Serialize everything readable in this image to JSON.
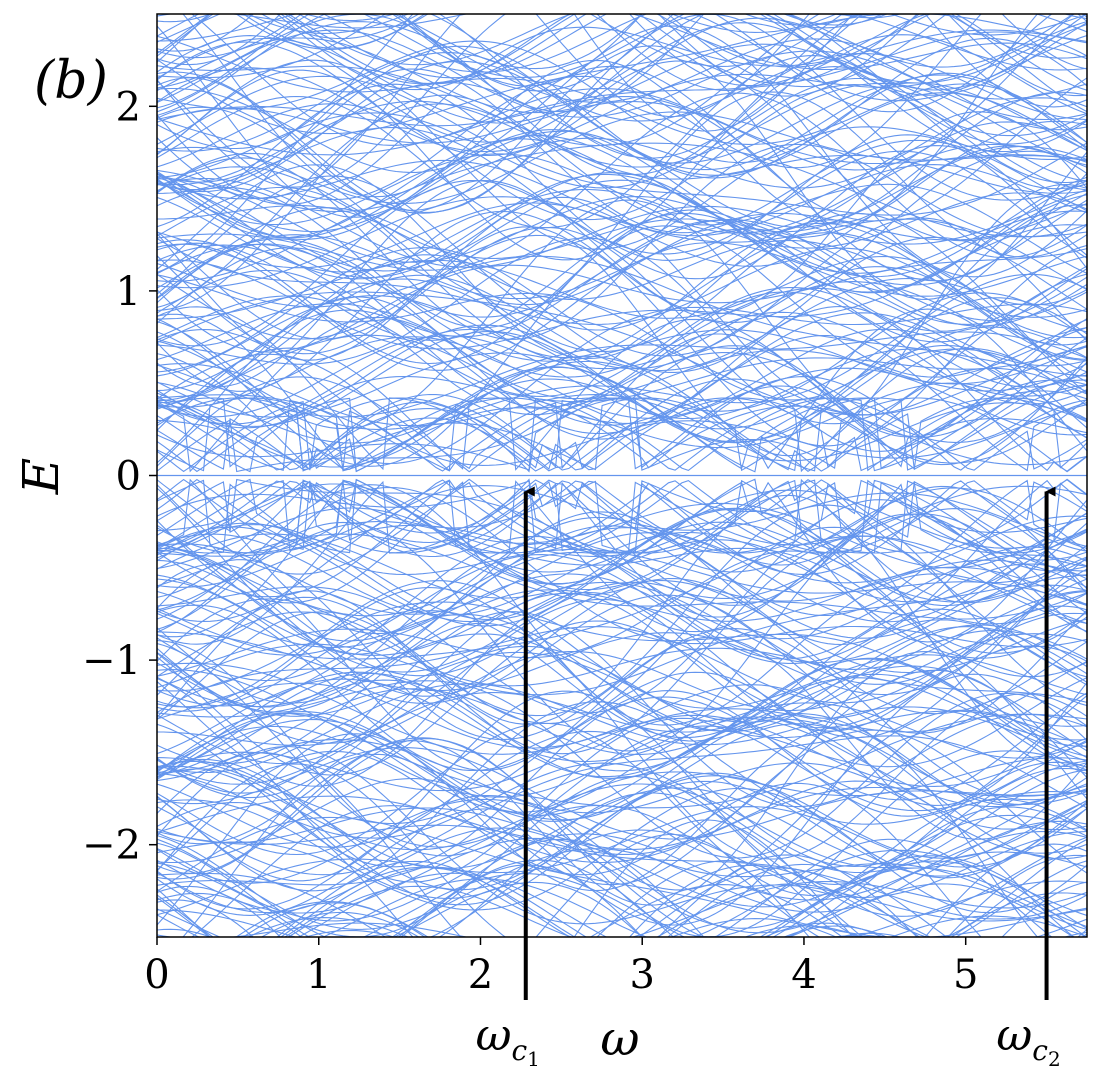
{
  "panel_label": "(b)",
  "chart_data": {
    "type": "line",
    "title": "",
    "xlabel": "ω",
    "ylabel": "E",
    "xlim": [
      0,
      5.75
    ],
    "ylim": [
      -2.5,
      2.5
    ],
    "xticks": [
      0,
      1,
      2,
      3,
      4,
      5
    ],
    "yticks": [
      -2,
      -1,
      0,
      1,
      2
    ],
    "xtick_labels": [
      "0",
      "1",
      "2",
      "3",
      "4",
      "5"
    ],
    "ytick_labels": [
      "−2",
      "−1",
      "0",
      "1",
      "2"
    ],
    "grid": false,
    "legend": "none",
    "line_color": "#6495ED",
    "description_of_series": "dense family of energy bands E(ω), symmetric about E=0; zero-energy flat mode; gap closings marked",
    "series": [
      {
        "values": []
      }
    ],
    "annotations": [
      {
        "label": "ω",
        "subscript": "c",
        "subsub": "1",
        "x": 2.28,
        "y": 0
      },
      {
        "label": "ω",
        "subscript": "c",
        "subsub": "2",
        "x": 5.5,
        "y": 0
      }
    ]
  }
}
